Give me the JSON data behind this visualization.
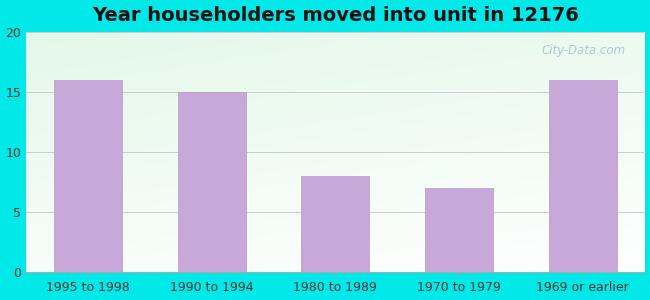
{
  "title": "Year householders moved into unit in 12176",
  "categories": [
    "1995 to 1998",
    "1990 to 1994",
    "1980 to 1989",
    "1970 to 1979",
    "1969 or earlier"
  ],
  "values": [
    16,
    15,
    8,
    7,
    16
  ],
  "bar_color": "#c8a8d8",
  "bar_edgecolor": "#b898c8",
  "ylim": [
    0,
    20
  ],
  "yticks": [
    0,
    5,
    10,
    15,
    20
  ],
  "background_outer": "#00e8e8",
  "grid_color": "#cccccc",
  "title_fontsize": 14,
  "tick_fontsize": 9,
  "watermark": "City-Data.com"
}
